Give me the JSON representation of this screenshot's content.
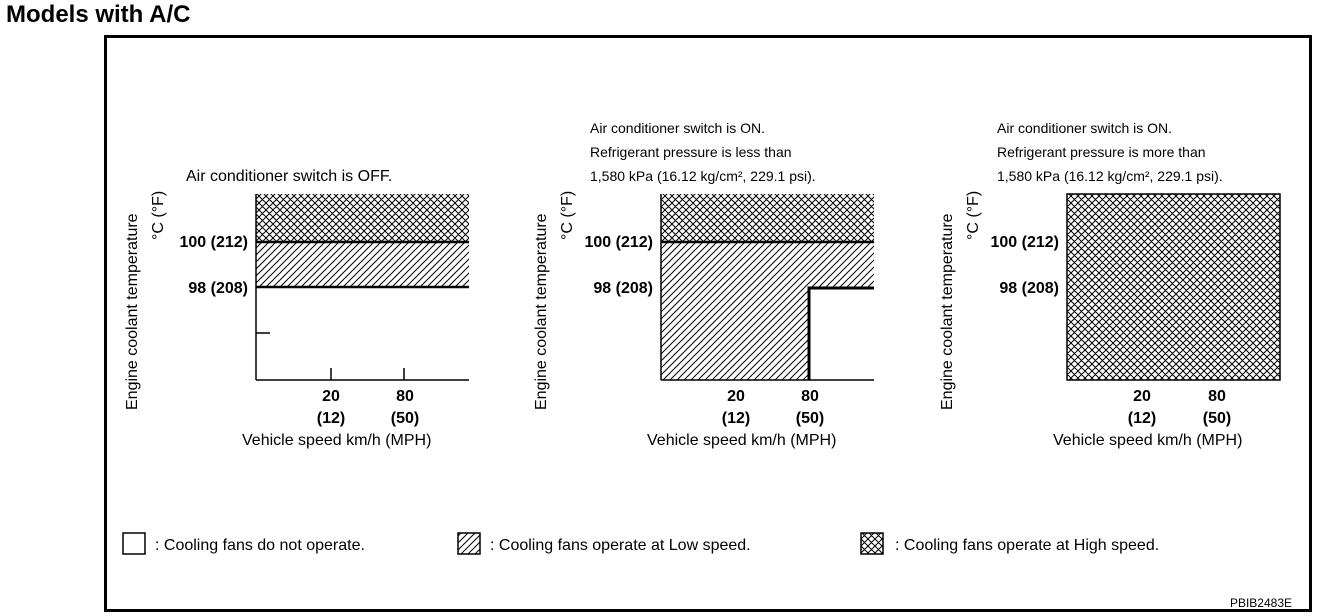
{
  "page": {
    "title": "Models with A/C"
  },
  "axis": {
    "ylabel_line1": "Engine coolant temperature",
    "ylabel_line2": "°C (°F)",
    "ytick_100": "100 (212)",
    "ytick_98": "98 (208)",
    "xtick_20_kmh": "20",
    "xtick_20_mph": "(12)",
    "xtick_80_kmh": "80",
    "xtick_80_mph": "(50)",
    "xlabel": "Vehicle speed km/h (MPH)"
  },
  "panels": [
    {
      "id": "ac-off",
      "caption": [
        "Air conditioner switch is OFF."
      ]
    },
    {
      "id": "ac-on-low-pressure",
      "caption": [
        "Air conditioner switch is ON.",
        "Refrigerant pressure is less than",
        "1,580 kPa (16.12 kg/cm², 229.1 psi)."
      ]
    },
    {
      "id": "ac-on-high-pressure",
      "caption": [
        "Air conditioner switch is ON.",
        "Refrigerant pressure is more than",
        "1,580 kPa (16.12 kg/cm², 229.1 psi)."
      ]
    }
  ],
  "legend": {
    "off": ": Cooling fans do not operate.",
    "low": ": Cooling fans operate at Low speed.",
    "high": ": Cooling fans operate at High speed."
  },
  "code": "PBIB2483E"
}
